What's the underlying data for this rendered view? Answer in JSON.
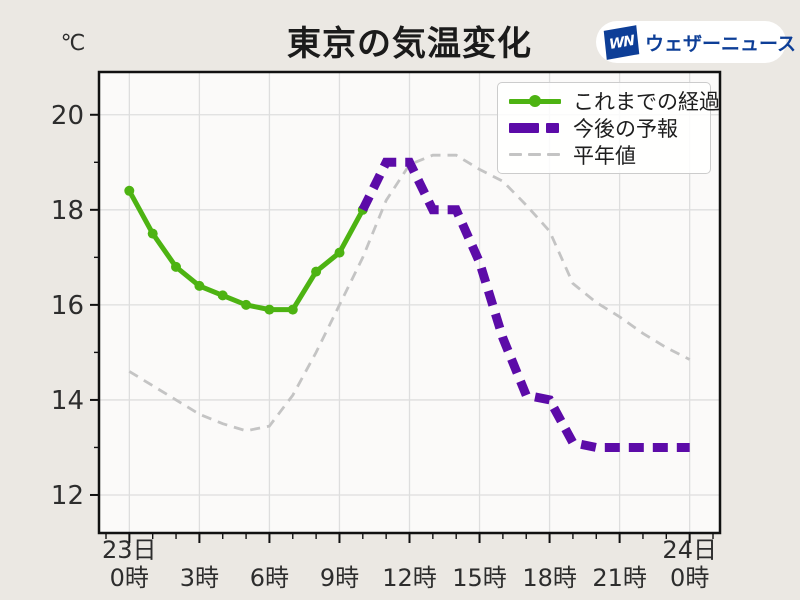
{
  "page": {
    "background": "#ebe8e3",
    "plot_background": "#fbfaf9"
  },
  "header": {
    "title": "東京の気温変化",
    "unit_label": "℃"
  },
  "logo": {
    "mark_text": "WN",
    "brand_text": "ウェザーニュース",
    "blue": "#0d3e97"
  },
  "legend": {
    "position": "upper right",
    "items": [
      {
        "label": "これまでの経過",
        "style": "solid-line-with-dot",
        "color": "#4db312"
      },
      {
        "label": "今後の予報",
        "style": "thick-dashed",
        "color": "#5c0ba8"
      },
      {
        "label": "平年値",
        "style": "thin-dashed",
        "color": "#c4c4c4"
      }
    ]
  },
  "chart_data": {
    "type": "line",
    "title": "東京の気温変化",
    "ylabel": "℃",
    "xlabel": "",
    "x_unit": "hour",
    "xlim": [
      -1.3,
      25.3
    ],
    "ylim": [
      11.2,
      20.9
    ],
    "grid": true,
    "grid_color": "#dedede",
    "frame_color": "#111111",
    "x_major_ticks": [
      {
        "hour": 0,
        "lines": [
          "23日",
          "0時"
        ]
      },
      {
        "hour": 3,
        "lines": [
          "3時"
        ]
      },
      {
        "hour": 6,
        "lines": [
          "6時"
        ]
      },
      {
        "hour": 9,
        "lines": [
          "9時"
        ]
      },
      {
        "hour": 12,
        "lines": [
          "12時"
        ]
      },
      {
        "hour": 15,
        "lines": [
          "15時"
        ]
      },
      {
        "hour": 18,
        "lines": [
          "18時"
        ]
      },
      {
        "hour": 21,
        "lines": [
          "21時"
        ]
      },
      {
        "hour": 24,
        "lines": [
          "24日",
          "0時"
        ]
      }
    ],
    "x_minor_tick_hours": [
      -1,
      0,
      1,
      2,
      3,
      4,
      5,
      6,
      7,
      8,
      9,
      10,
      11,
      12,
      13,
      14,
      15,
      16,
      17,
      18,
      19,
      20,
      21,
      22,
      23,
      24,
      25
    ],
    "y_major_ticks": [
      12,
      14,
      16,
      18,
      20
    ],
    "y_minor_ticks": [
      13,
      15,
      17,
      19
    ],
    "series": [
      {
        "key": "normal",
        "name": "平年値",
        "line_style": "dashed",
        "color": "#c4c4c4",
        "line_width": 2.8,
        "dash": [
          10,
          7
        ],
        "marker": "none",
        "x": [
          0,
          1,
          2,
          3,
          4,
          5,
          6,
          7,
          8,
          9,
          10,
          11,
          12,
          13,
          14,
          15,
          16,
          17,
          18,
          19,
          20,
          21,
          22,
          23,
          24
        ],
        "y": [
          14.6,
          14.3,
          14.0,
          13.7,
          13.5,
          13.35,
          13.45,
          14.1,
          15.0,
          16.0,
          17.0,
          18.2,
          18.95,
          19.15,
          19.15,
          18.85,
          18.6,
          18.1,
          17.55,
          16.45,
          16.05,
          15.75,
          15.4,
          15.1,
          14.85
        ]
      },
      {
        "key": "past",
        "name": "これまでの経過",
        "line_style": "solid",
        "color": "#4db312",
        "line_width": 5,
        "dash": null,
        "marker": "circle",
        "marker_radius": 5,
        "x": [
          0,
          1,
          2,
          3,
          4,
          5,
          6,
          7,
          8,
          9,
          10
        ],
        "y": [
          18.4,
          17.5,
          16.8,
          16.4,
          16.2,
          16.0,
          15.9,
          15.9,
          16.7,
          17.1,
          18.0
        ]
      },
      {
        "key": "forecast",
        "name": "今後の予報",
        "line_style": "dashed",
        "color": "#5c0ba8",
        "line_width": 9,
        "dash": [
          15,
          9
        ],
        "marker": "none",
        "x": [
          10,
          11,
          12,
          13,
          14,
          15,
          16,
          17,
          18,
          19,
          20,
          21,
          22,
          23,
          24
        ],
        "y": [
          18.0,
          19.0,
          19.0,
          18.0,
          18.0,
          16.9,
          15.3,
          14.1,
          14.0,
          13.1,
          13.0,
          13.0,
          13.0,
          13.0,
          13.0
        ]
      }
    ]
  }
}
